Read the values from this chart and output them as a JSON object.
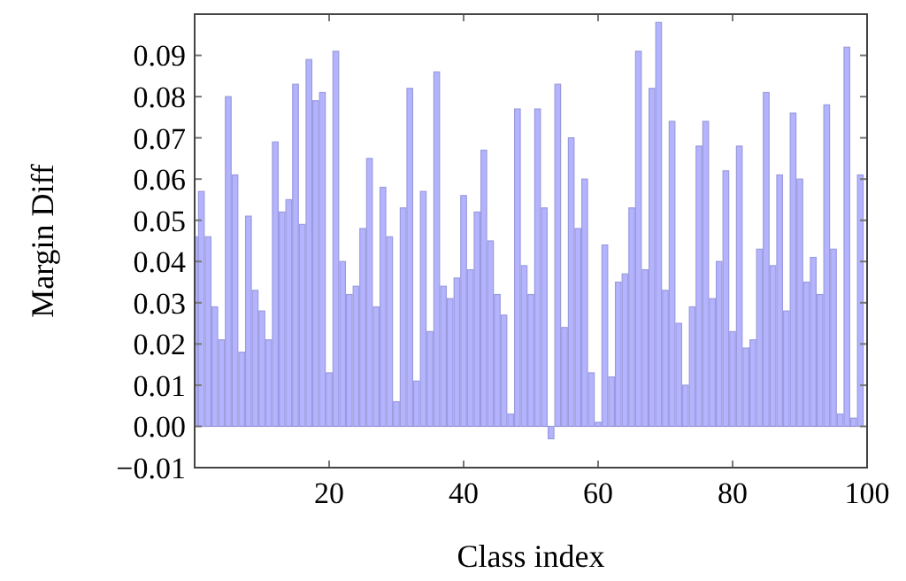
{
  "chart_data": {
    "type": "bar",
    "xlabel": "Class index",
    "ylabel": "Margin Diff",
    "color": "#b3b3ff",
    "x": [
      0,
      1,
      2,
      3,
      4,
      5,
      6,
      7,
      8,
      9,
      10,
      11,
      12,
      13,
      14,
      15,
      16,
      17,
      18,
      19,
      20,
      21,
      22,
      23,
      24,
      25,
      26,
      27,
      28,
      29,
      30,
      31,
      32,
      33,
      34,
      35,
      36,
      37,
      38,
      39,
      40,
      41,
      42,
      43,
      44,
      45,
      46,
      47,
      48,
      49,
      50,
      51,
      52,
      53,
      54,
      55,
      56,
      57,
      58,
      59,
      60,
      61,
      62,
      63,
      64,
      65,
      66,
      67,
      68,
      69,
      70,
      71,
      72,
      73,
      74,
      75,
      76,
      77,
      78,
      79,
      80,
      81,
      82,
      83,
      84,
      85,
      86,
      87,
      88,
      89,
      90,
      91,
      92,
      93,
      94,
      95,
      96,
      97,
      98,
      99
    ],
    "values": [
      0.046,
      0.057,
      0.046,
      0.029,
      0.021,
      0.08,
      0.061,
      0.018,
      0.051,
      0.033,
      0.028,
      0.021,
      0.069,
      0.052,
      0.055,
      0.083,
      0.049,
      0.089,
      0.079,
      0.081,
      0.013,
      0.091,
      0.04,
      0.032,
      0.034,
      0.048,
      0.065,
      0.029,
      0.058,
      0.046,
      0.006,
      0.053,
      0.082,
      0.011,
      0.057,
      0.023,
      0.086,
      0.034,
      0.031,
      0.036,
      0.056,
      0.038,
      0.052,
      0.067,
      0.045,
      0.032,
      0.027,
      0.003,
      0.077,
      0.039,
      0.032,
      0.077,
      0.053,
      -0.003,
      0.083,
      0.024,
      0.07,
      0.048,
      0.06,
      0.013,
      0.001,
      0.044,
      0.012,
      0.035,
      0.037,
      0.053,
      0.091,
      0.038,
      0.082,
      0.098,
      0.033,
      0.074,
      0.025,
      0.01,
      0.029,
      0.068,
      0.074,
      0.031,
      0.04,
      0.062,
      0.023,
      0.068,
      0.019,
      0.021,
      0.043,
      0.081,
      0.039,
      0.061,
      0.028,
      0.076,
      0.06,
      0.035,
      0.041,
      0.032,
      0.078,
      0.043,
      0.003,
      0.092,
      0.002,
      0.061
    ],
    "xlim": [
      0,
      100
    ],
    "xticks": [
      20,
      40,
      60,
      80,
      100
    ],
    "ylim": [
      -0.01,
      0.1
    ],
    "yticks": [
      {
        "value": -0.01,
        "label": "−0.01"
      },
      {
        "value": 0,
        "label": "0.00"
      },
      {
        "value": 0.01,
        "label": "0.01"
      },
      {
        "value": 0.02,
        "label": "0.02"
      },
      {
        "value": 0.03,
        "label": "0.03"
      },
      {
        "value": 0.04,
        "label": "0.04"
      },
      {
        "value": 0.05,
        "label": "0.05"
      },
      {
        "value": 0.06,
        "label": "0.06"
      },
      {
        "value": 0.07,
        "label": "0.07"
      },
      {
        "value": 0.08,
        "label": "0.08"
      },
      {
        "value": 0.09,
        "label": "0.09"
      }
    ],
    "grid": false
  }
}
